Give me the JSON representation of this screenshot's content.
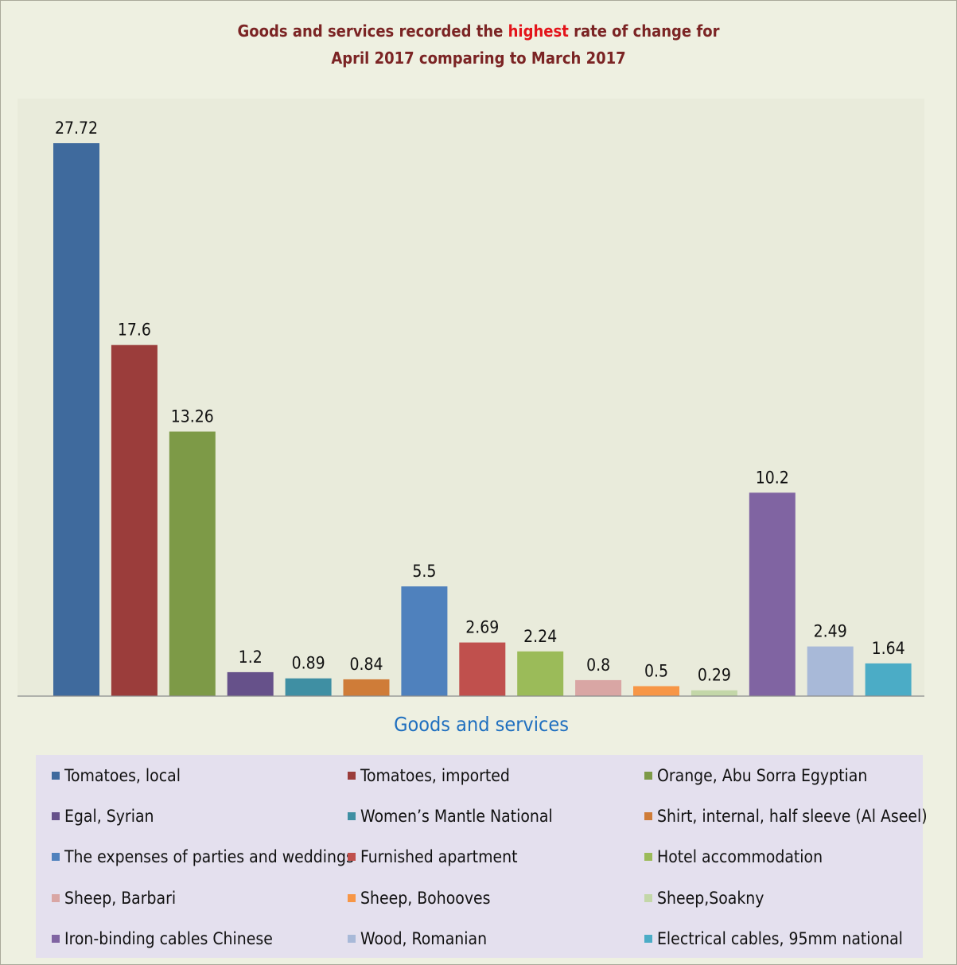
{
  "chart_data": {
    "type": "bar",
    "title_line1_pre": "Goods and services recorded the ",
    "title_highlight": "highest",
    "title_line1_post": " rate of change for",
    "title_line2": "April 2017 comparing to March 2017",
    "xlabel": "Goods and services",
    "ylabel": "",
    "ylim": [
      0,
      27.72
    ],
    "grid": false,
    "legend_position": "bottom",
    "categories": [
      "Tomatoes, local",
      "Tomatoes, imported",
      "Orange, Abu Sorra Egyptian",
      "Egal, Syrian",
      "Women’s Mantle National",
      "Shirt, internal, half sleeve (Al Aseel)",
      "The expenses of parties and weddings",
      "Furnished apartment",
      "Hotel accommodation",
      "Sheep, Barbari",
      "Sheep, Bohooves",
      "Sheep,Soakny",
      "Iron-binding cables Chinese",
      "Wood, Romanian",
      "Electrical cables, 95mm national"
    ],
    "values": [
      27.72,
      17.6,
      13.26,
      1.2,
      0.89,
      0.84,
      5.5,
      2.69,
      2.24,
      0.8,
      0.5,
      0.29,
      10.2,
      2.49,
      1.64
    ],
    "labels": [
      "27.72",
      "17.6",
      "13.26",
      "1.2",
      "0.89",
      "0.84",
      "5.5",
      "2.69",
      "2.24",
      "0.8",
      "0.5",
      "0.29",
      "10.2",
      "2.49",
      "1.64"
    ],
    "colors": [
      "#3f6a9d",
      "#9b3d3b",
      "#7d9a47",
      "#66518a",
      "#3f8fa3",
      "#cf7c38",
      "#4f81bd",
      "#c0504d",
      "#9bbb59",
      "#d9a6a4",
      "#f79646",
      "#c3d7a8",
      "#8064a2",
      "#a8b9d8",
      "#4bacc6"
    ]
  }
}
